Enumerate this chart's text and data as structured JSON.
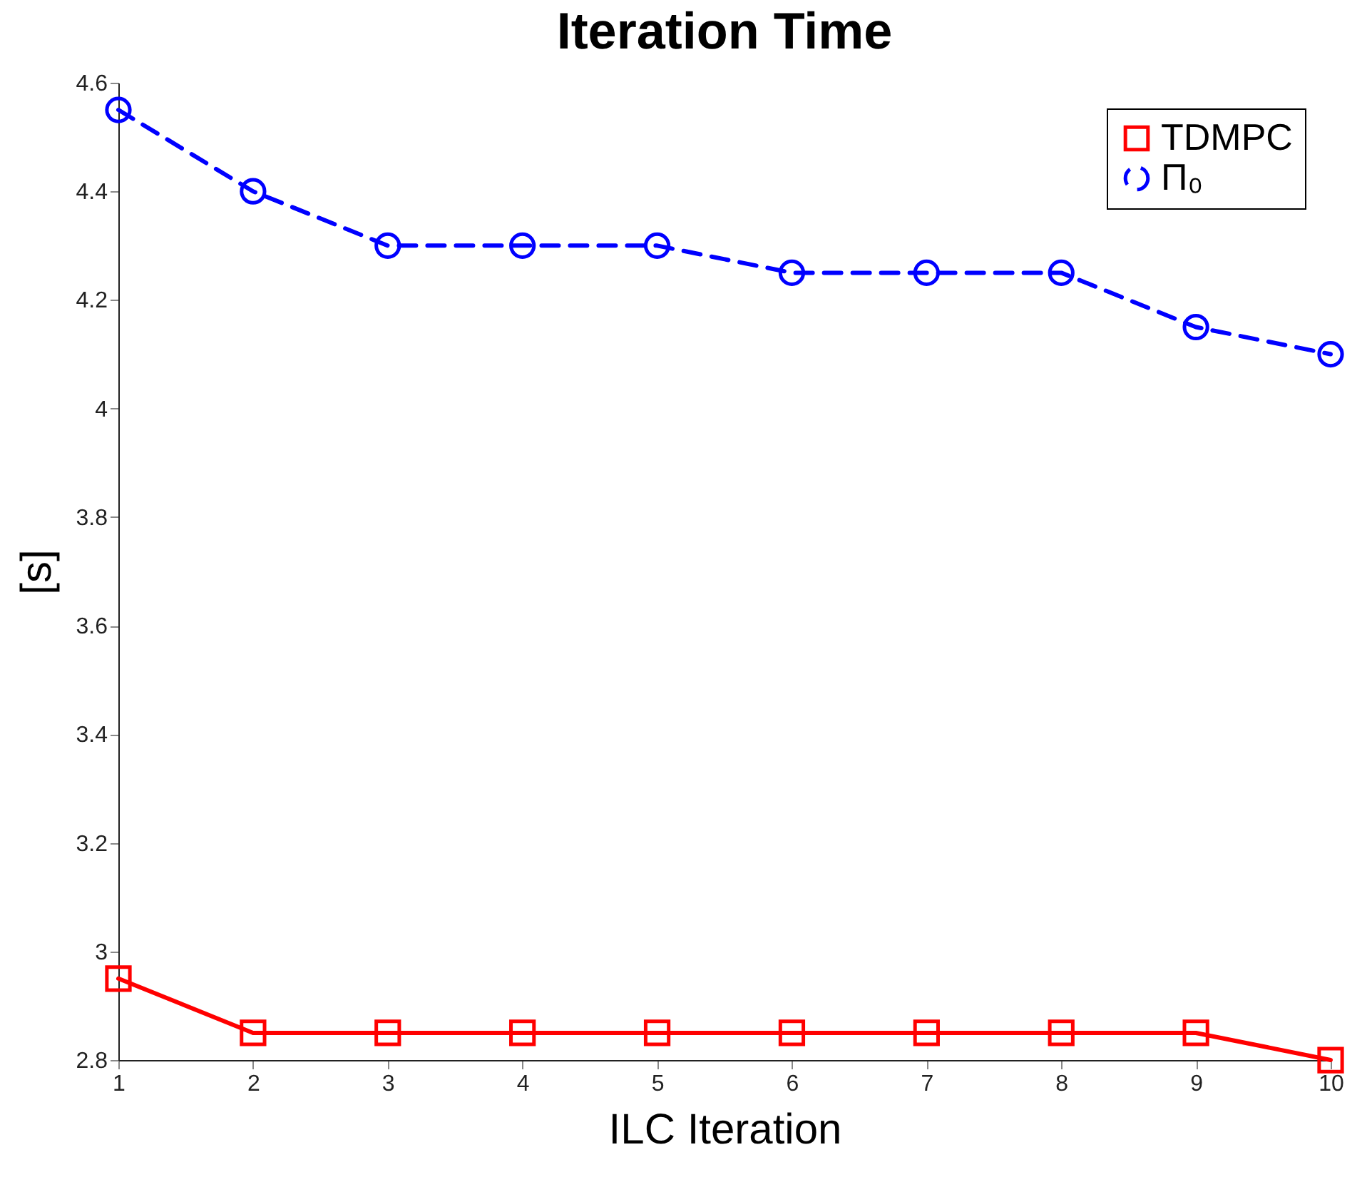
{
  "chart_data": {
    "type": "line",
    "title": "Iteration Time",
    "xlabel": "ILC Iteration",
    "ylabel": "[s]",
    "x": [
      1,
      2,
      3,
      4,
      5,
      6,
      7,
      8,
      9,
      10
    ],
    "xlim": [
      1,
      10
    ],
    "xticks": [
      1,
      2,
      3,
      4,
      5,
      6,
      7,
      8,
      9,
      10
    ],
    "ylim": [
      2.8,
      4.6
    ],
    "yticks": [
      2.8,
      3,
      3.2,
      3.4,
      3.6,
      3.8,
      4,
      4.2,
      4.4,
      4.6
    ],
    "grid": false,
    "legend": "top right",
    "series": [
      {
        "name": "TDMPC",
        "color": "#ff0000",
        "marker": "square",
        "line_style": "solid",
        "values": [
          2.95,
          2.85,
          2.85,
          2.85,
          2.85,
          2.85,
          2.85,
          2.85,
          2.85,
          2.8
        ]
      },
      {
        "name": "Π₀",
        "color": "#0000ff",
        "marker": "circle",
        "line_style": "dashed",
        "values": [
          4.55,
          4.4,
          4.3,
          4.3,
          4.3,
          4.25,
          4.25,
          4.25,
          4.15,
          4.1
        ]
      }
    ]
  }
}
